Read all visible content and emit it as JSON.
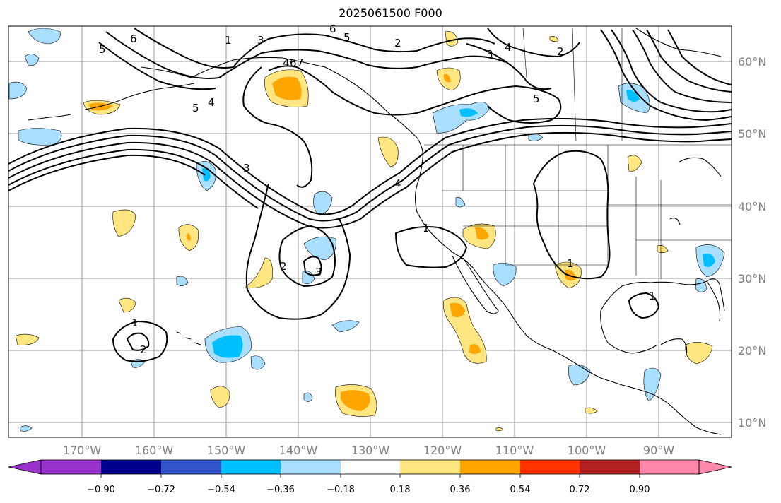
{
  "title": "2025061500 F000",
  "map": {
    "lon_labels": [
      "170°W",
      "160°W",
      "150°W",
      "140°W",
      "130°W",
      "120°W",
      "110°W",
      "100°W",
      "90°W"
    ],
    "lat_labels": [
      "60°N",
      "50°N",
      "40°N",
      "30°N",
      "20°N",
      "10°N"
    ],
    "contour_labels": [
      "1",
      "3",
      "5",
      "6",
      "2",
      "3",
      "4",
      "5",
      "4",
      "5",
      "4",
      "3",
      "4",
      "1",
      "2",
      "3",
      "1",
      "2",
      "1",
      "1",
      "2",
      "5",
      "6",
      "7",
      "6"
    ]
  },
  "colorbar": {
    "tick_labels": [
      "−0.90",
      "−0.72",
      "−0.54",
      "−0.36",
      "−0.18",
      "0.18",
      "0.36",
      "0.54",
      "0.72",
      "0.90"
    ],
    "colors": [
      "#9933cc",
      "#00008b",
      "#3355cc",
      "#00bfff",
      "#aadeff",
      "#ffffff",
      "#ffe680",
      "#ffa500",
      "#ff3300",
      "#b22222",
      "#ff88aa"
    ]
  },
  "fill_colors": {
    "neg_light": "#aadeff",
    "neg_mid": "#00bfff",
    "pos_light": "#ffe680",
    "pos_mid": "#ffa500"
  }
}
